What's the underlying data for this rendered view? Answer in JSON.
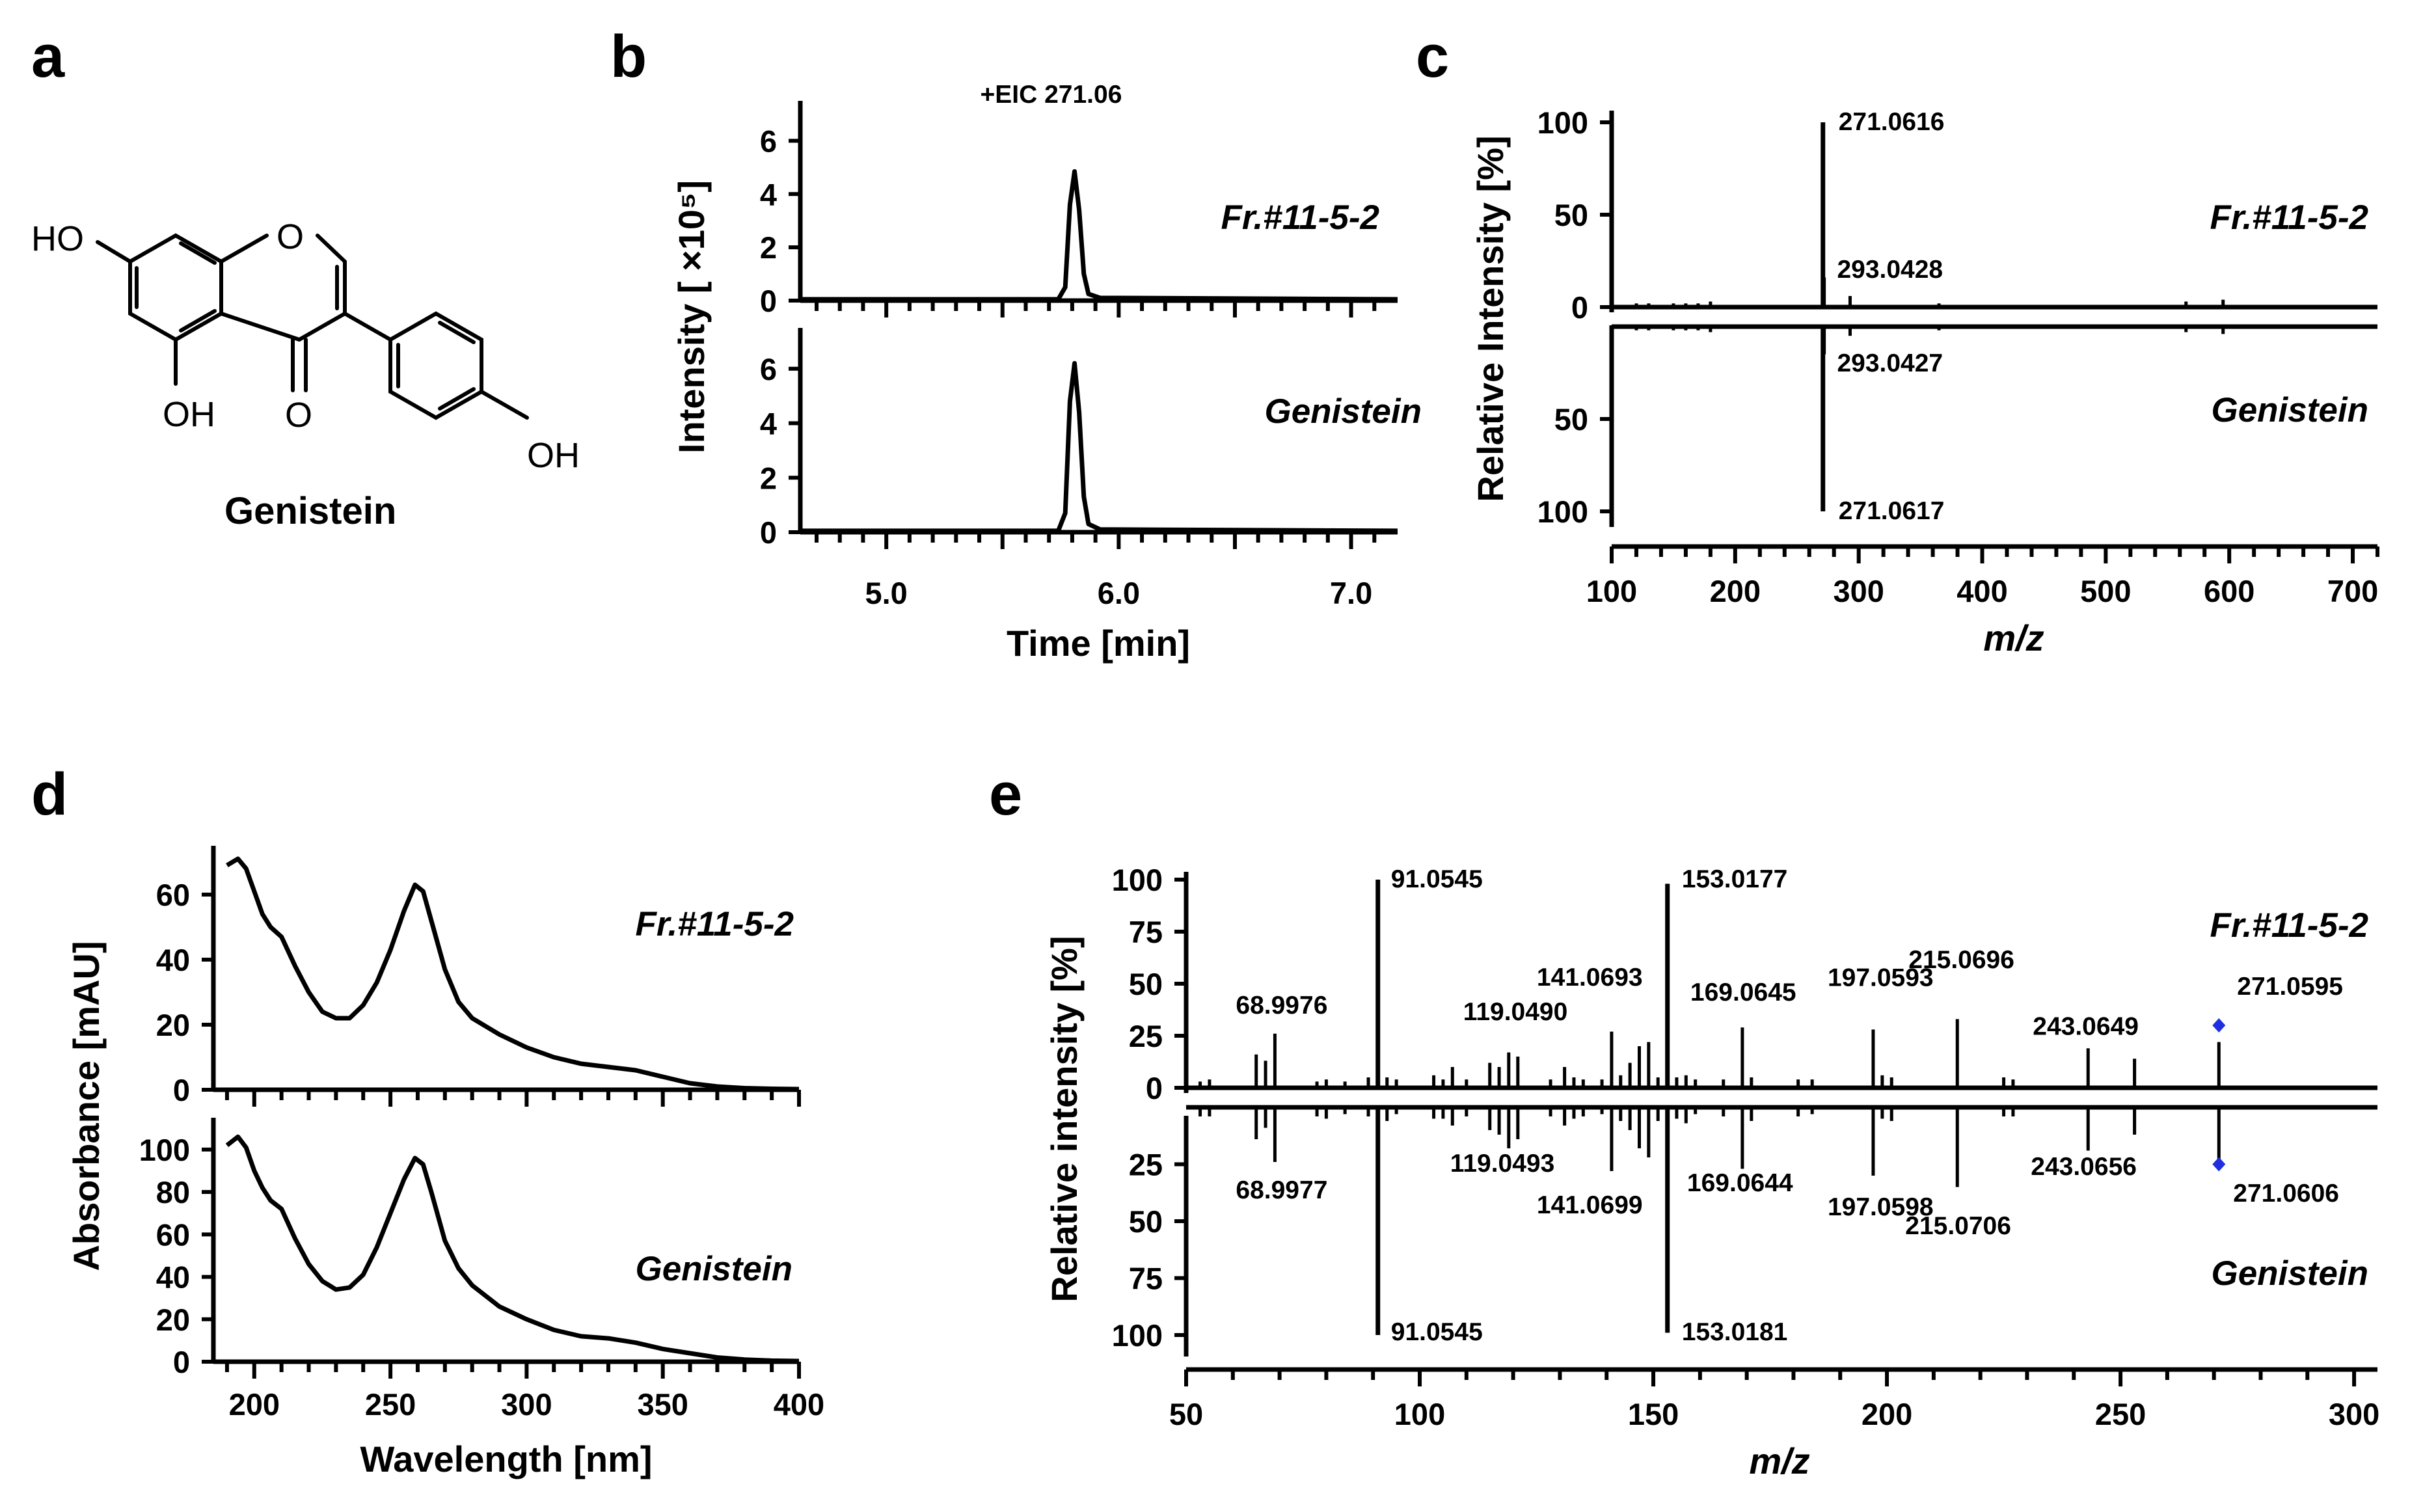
{
  "panels": {
    "a": "a",
    "b": "b",
    "c": "c",
    "d": "d",
    "e": "e"
  },
  "structure": {
    "compound_name": "Genistein",
    "atoms": {
      "ho_left": "HO",
      "o_ring": "O",
      "oh_5": "OH",
      "o_ketone": "O",
      "oh_4p": "OH"
    }
  },
  "chart_data": [
    {
      "id": "b",
      "type": "line",
      "title": "+EIC 271.06",
      "xlabel": "Time [min]",
      "ylabel": "Intensity [ ×10⁵]",
      "xlim": [
        4.63,
        7.2
      ],
      "xticks": [
        "5.0",
        "6.0",
        "7.0"
      ],
      "ylim": [
        0,
        7.5
      ],
      "yticks": [
        "0",
        "2",
        "4",
        "6"
      ],
      "series": [
        {
          "name": "Fr.#11-5-2",
          "peak_x": 5.81,
          "peak_y": 4.85,
          "baseline": 0.05,
          "points": [
            [
              4.63,
              0.05
            ],
            [
              5.74,
              0.05
            ],
            [
              5.77,
              0.5
            ],
            [
              5.79,
              3.6
            ],
            [
              5.81,
              4.85
            ],
            [
              5.83,
              3.4
            ],
            [
              5.85,
              1.0
            ],
            [
              5.87,
              0.25
            ],
            [
              5.92,
              0.1
            ],
            [
              7.2,
              0.05
            ]
          ]
        },
        {
          "name": "Genistein",
          "peak_x": 5.81,
          "peak_y": 6.2,
          "baseline": 0.05,
          "points": [
            [
              4.63,
              0.05
            ],
            [
              5.74,
              0.05
            ],
            [
              5.77,
              0.7
            ],
            [
              5.79,
              4.8
            ],
            [
              5.81,
              6.2
            ],
            [
              5.83,
              4.4
            ],
            [
              5.85,
              1.3
            ],
            [
              5.87,
              0.3
            ],
            [
              5.92,
              0.1
            ],
            [
              7.2,
              0.05
            ]
          ]
        }
      ]
    },
    {
      "id": "c",
      "type": "bar",
      "xlabel": "m/z",
      "ylabel": "Relative Intensity [%]",
      "xlim": [
        100,
        720
      ],
      "xticks": [
        "100",
        "200",
        "300",
        "400",
        "500",
        "600",
        "700"
      ],
      "ylim": [
        0,
        110
      ],
      "yticks_top": [
        "0",
        "50",
        "100"
      ],
      "yticks_bottom": [
        "50",
        "100"
      ],
      "series": [
        {
          "name": "Fr.#11-5-2",
          "direction": "up",
          "peaks": [
            [
              120,
              2
            ],
            [
              130,
              2
            ],
            [
              150,
              2
            ],
            [
              160,
              2
            ],
            [
              170,
              2
            ],
            [
              180,
              3
            ],
            [
              271.06,
              100
            ],
            [
              272.06,
              16
            ],
            [
              293.04,
              6
            ],
            [
              365,
              2
            ],
            [
              565,
              3
            ],
            [
              595,
              4
            ]
          ],
          "annotations": [
            {
              "mz": 271.06,
              "label": "271.0616"
            },
            {
              "mz": 293.04,
              "label": "293.0428"
            }
          ]
        },
        {
          "name": "Genistein",
          "direction": "down",
          "peaks": [
            [
              120,
              2
            ],
            [
              130,
              2
            ],
            [
              150,
              2
            ],
            [
              160,
              2
            ],
            [
              170,
              2
            ],
            [
              180,
              3
            ],
            [
              271.06,
              100
            ],
            [
              272.06,
              15
            ],
            [
              293.04,
              5
            ],
            [
              365,
              2
            ],
            [
              565,
              3
            ],
            [
              595,
              4
            ]
          ],
          "annotations": [
            {
              "mz": 271.06,
              "label": "271.0617"
            },
            {
              "mz": 293.04,
              "label": "293.0427"
            }
          ]
        }
      ]
    },
    {
      "id": "d",
      "type": "line",
      "xlabel": "Wavelength [nm]",
      "ylabel": "Absorbance [mAU]",
      "xlim": [
        185,
        400
      ],
      "xticks": [
        "200",
        "250",
        "300",
        "350",
        "400"
      ],
      "series": [
        {
          "name": "Fr.#11-5-2",
          "ylim": [
            0,
            75
          ],
          "yticks": [
            "0",
            "20",
            "40",
            "60"
          ],
          "points": [
            [
              190,
              69
            ],
            [
              194,
              71
            ],
            [
              197,
              68
            ],
            [
              200,
              61
            ],
            [
              203,
              54
            ],
            [
              206,
              50
            ],
            [
              210,
              47
            ],
            [
              215,
              38
            ],
            [
              220,
              30
            ],
            [
              225,
              24
            ],
            [
              230,
              22
            ],
            [
              235,
              22
            ],
            [
              240,
              26
            ],
            [
              245,
              33
            ],
            [
              250,
              43
            ],
            [
              255,
              55
            ],
            [
              259,
              63
            ],
            [
              262,
              61
            ],
            [
              265,
              52
            ],
            [
              270,
              37
            ],
            [
              275,
              27
            ],
            [
              280,
              22
            ],
            [
              290,
              17
            ],
            [
              300,
              13
            ],
            [
              310,
              10
            ],
            [
              320,
              8
            ],
            [
              330,
              7
            ],
            [
              340,
              6
            ],
            [
              350,
              4
            ],
            [
              360,
              2
            ],
            [
              370,
              1
            ],
            [
              380,
              0.5
            ],
            [
              390,
              0.3
            ],
            [
              400,
              0.2
            ]
          ]
        },
        {
          "name": "Genistein",
          "ylim": [
            0,
            115
          ],
          "yticks": [
            "0",
            "20",
            "40",
            "60",
            "80",
            "100"
          ],
          "points": [
            [
              190,
              102
            ],
            [
              194,
              106
            ],
            [
              197,
              101
            ],
            [
              200,
              90
            ],
            [
              203,
              82
            ],
            [
              206,
              76
            ],
            [
              210,
              72
            ],
            [
              215,
              58
            ],
            [
              220,
              46
            ],
            [
              225,
              38
            ],
            [
              230,
              34
            ],
            [
              235,
              35
            ],
            [
              240,
              41
            ],
            [
              245,
              54
            ],
            [
              250,
              70
            ],
            [
              255,
              86
            ],
            [
              259,
              96
            ],
            [
              262,
              93
            ],
            [
              265,
              80
            ],
            [
              270,
              57
            ],
            [
              275,
              44
            ],
            [
              280,
              36
            ],
            [
              290,
              26
            ],
            [
              300,
              20
            ],
            [
              310,
              15
            ],
            [
              320,
              12
            ],
            [
              330,
              11
            ],
            [
              340,
              9
            ],
            [
              350,
              6
            ],
            [
              360,
              4
            ],
            [
              370,
              2
            ],
            [
              380,
              1
            ],
            [
              390,
              0.5
            ],
            [
              400,
              0.3
            ]
          ]
        }
      ]
    },
    {
      "id": "e",
      "type": "bar",
      "xlabel": "m/z",
      "ylabel": "Relative intensity [%]",
      "xlim": [
        50,
        305
      ],
      "xticks": [
        "50",
        "100",
        "150",
        "200",
        "250",
        "300"
      ],
      "ylim": [
        0,
        110
      ],
      "yticks_top": [
        "0",
        "25",
        "50",
        "75",
        "100"
      ],
      "yticks_bottom": [
        "25",
        "50",
        "75",
        "100"
      ],
      "marker_color": "#1f2fe0",
      "series": [
        {
          "name": "Fr.#11-5-2",
          "direction": "up",
          "peaks": [
            [
              53,
              3
            ],
            [
              55,
              4
            ],
            [
              65,
              16
            ],
            [
              67,
              13
            ],
            [
              69,
              26
            ],
            [
              78,
              3
            ],
            [
              80,
              4
            ],
            [
              84,
              3
            ],
            [
              89,
              5
            ],
            [
              91.05,
              100
            ],
            [
              93,
              5
            ],
            [
              95,
              4
            ],
            [
              103,
              6
            ],
            [
              105,
              4
            ],
            [
              107,
              10
            ],
            [
              110,
              4
            ],
            [
              115,
              12
            ],
            [
              117,
              10
            ],
            [
              119.05,
              17
            ],
            [
              121,
              15
            ],
            [
              128,
              4
            ],
            [
              131,
              10
            ],
            [
              133,
              5
            ],
            [
              135,
              4
            ],
            [
              139,
              4
            ],
            [
              141.07,
              27
            ],
            [
              143,
              6
            ],
            [
              145,
              12
            ],
            [
              147,
              20
            ],
            [
              149,
              22
            ],
            [
              151,
              5
            ],
            [
              153.02,
              98
            ],
            [
              155,
              5
            ],
            [
              157,
              6
            ],
            [
              159,
              4
            ],
            [
              165,
              4
            ],
            [
              169.06,
              29
            ],
            [
              171,
              5
            ],
            [
              181,
              4
            ],
            [
              184,
              4
            ],
            [
              197.06,
              28
            ],
            [
              199,
              6
            ],
            [
              201,
              5
            ],
            [
              215.07,
              33
            ],
            [
              225,
              5
            ],
            [
              227,
              4
            ],
            [
              243.06,
              19
            ],
            [
              253,
              14
            ],
            [
              271.06,
              22
            ]
          ],
          "annotations": [
            {
              "mz": 68.9976,
              "label": "68.9976"
            },
            {
              "mz": 91.0545,
              "label": "91.0545"
            },
            {
              "mz": 119.049,
              "label": "119.0490"
            },
            {
              "mz": 141.0693,
              "label": "141.0693"
            },
            {
              "mz": 153.0177,
              "label": "153.0177"
            },
            {
              "mz": 169.0645,
              "label": "169.0645"
            },
            {
              "mz": 197.0593,
              "label": "197.0593"
            },
            {
              "mz": 215.0696,
              "label": "215.0696"
            },
            {
              "mz": 243.0649,
              "label": "243.0649"
            },
            {
              "mz": 271.0595,
              "label": "271.0595"
            }
          ]
        },
        {
          "name": "Genistein",
          "direction": "down",
          "peaks": [
            [
              53,
              4
            ],
            [
              55,
              4
            ],
            [
              65,
              14
            ],
            [
              67,
              9
            ],
            [
              69,
              24
            ],
            [
              78,
              4
            ],
            [
              80,
              5
            ],
            [
              84,
              3
            ],
            [
              89,
              4
            ],
            [
              91.05,
              100
            ],
            [
              93,
              6
            ],
            [
              95,
              3
            ],
            [
              103,
              5
            ],
            [
              105,
              5
            ],
            [
              107,
              8
            ],
            [
              110,
              4
            ],
            [
              115,
              10
            ],
            [
              117,
              12
            ],
            [
              119.05,
              18
            ],
            [
              121,
              14
            ],
            [
              128,
              4
            ],
            [
              131,
              8
            ],
            [
              133,
              5
            ],
            [
              135,
              4
            ],
            [
              139,
              3
            ],
            [
              141.07,
              28
            ],
            [
              143,
              6
            ],
            [
              145,
              10
            ],
            [
              147,
              18
            ],
            [
              149,
              22
            ],
            [
              151,
              6
            ],
            [
              153.02,
              99
            ],
            [
              155,
              5
            ],
            [
              157,
              7
            ],
            [
              159,
              3
            ],
            [
              165,
              4
            ],
            [
              169.06,
              27
            ],
            [
              171,
              6
            ],
            [
              181,
              4
            ],
            [
              184,
              3
            ],
            [
              197.06,
              30
            ],
            [
              199,
              5
            ],
            [
              201,
              6
            ],
            [
              215.07,
              35
            ],
            [
              225,
              4
            ],
            [
              227,
              4
            ],
            [
              243.06,
              19
            ],
            [
              253,
              12
            ],
            [
              271.06,
              23
            ]
          ],
          "annotations": [
            {
              "mz": 68.9977,
              "label": "68.9977"
            },
            {
              "mz": 91.0545,
              "label": "91.0545"
            },
            {
              "mz": 119.0493,
              "label": "119.0493"
            },
            {
              "mz": 141.0699,
              "label": "141.0699"
            },
            {
              "mz": 153.0181,
              "label": "153.0181"
            },
            {
              "mz": 169.0644,
              "label": "169.0644"
            },
            {
              "mz": 197.0598,
              "label": "197.0598"
            },
            {
              "mz": 215.0706,
              "label": "215.0706"
            },
            {
              "mz": 243.0656,
              "label": "243.0656"
            },
            {
              "mz": 271.0606,
              "label": "271.0606"
            }
          ]
        }
      ]
    }
  ]
}
